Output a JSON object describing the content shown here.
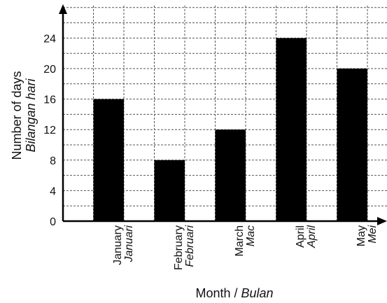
{
  "chart_data": {
    "type": "bar",
    "categories": [
      {
        "en": "January",
        "ms": "Januari"
      },
      {
        "en": "February",
        "ms": "Februari"
      },
      {
        "en": "March",
        "ms": "Mac"
      },
      {
        "en": "April",
        "ms": "April"
      },
      {
        "en": "May",
        "ms": "Mei"
      }
    ],
    "values": [
      16,
      8,
      12,
      24,
      20
    ],
    "ylim": [
      0,
      28
    ],
    "yticks": [
      0,
      4,
      8,
      12,
      16,
      20,
      24
    ],
    "ylabel": {
      "en": "Number of days",
      "ms": "Bilangan hari"
    },
    "xlabel": {
      "en": "Month",
      "separator": " / ",
      "ms": "Bulan"
    },
    "grid": true,
    "bar_color": "#000000",
    "grid_color": "#555555"
  }
}
